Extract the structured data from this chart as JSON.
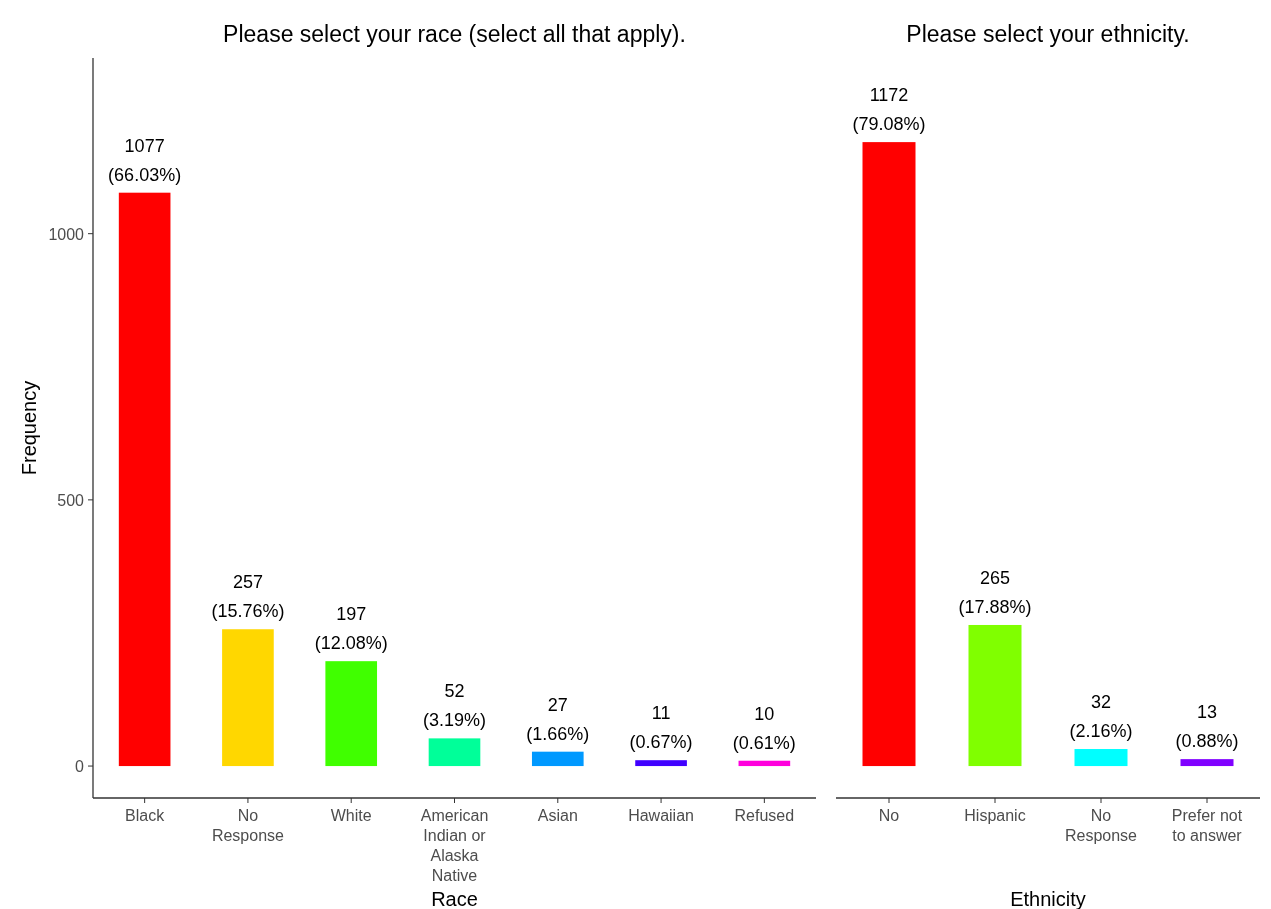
{
  "chart_data": [
    {
      "type": "bar",
      "title": "Please select your race (select all that apply).",
      "xlabel": "Race",
      "ylabel": "Frequency",
      "categories": [
        "Black",
        "No Response",
        "White",
        "American Indian or Alaska Native",
        "Asian",
        "Hawaiian",
        "Refused"
      ],
      "values": [
        1077,
        257,
        197,
        52,
        27,
        11,
        10
      ],
      "colors": [
        "#ff0000",
        "#ffd700",
        "#40ff00",
        "#00ff99",
        "#0099ff",
        "#4000ff",
        "#ff00dd"
      ],
      "value_labels": [
        "1077\n(66.03%)",
        "257\n(15.76%)",
        "197\n(12.08%)",
        "52\n(3.19%)",
        "27\n(1.66%)",
        "11\n(0.67%)",
        "10\n(0.61%)"
      ],
      "ylim": [
        -60,
        1330
      ],
      "yticks": [
        0,
        500,
        1000
      ]
    },
    {
      "type": "bar",
      "title": "Please select your ethnicity.",
      "xlabel": "Ethnicity",
      "categories": [
        "No",
        "Hispanic",
        "No Response",
        "Prefer not to answer"
      ],
      "values": [
        1172,
        265,
        32,
        13
      ],
      "colors": [
        "#ff0000",
        "#80ff00",
        "#00ffff",
        "#8000ff"
      ],
      "value_labels": [
        "1172\n(79.08%)",
        "265\n(17.88%)",
        "32\n(2.16%)",
        "13\n(0.88%)"
      ],
      "tick_labels": "x"
    }
  ]
}
